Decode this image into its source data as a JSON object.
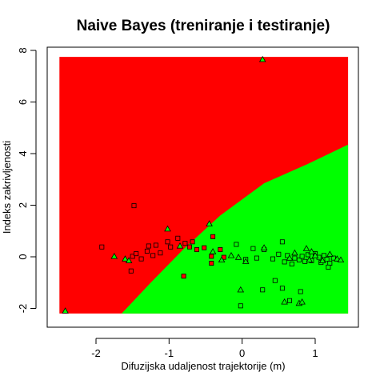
{
  "chart_data": {
    "type": "scatter",
    "title": "Naive Bayes (treniranje i testiranje)",
    "xlabel": "Difuzijska udaljenost trajektorije (m)",
    "ylabel": "Indeks zakrivljenosti",
    "xlim": [
      -2.5,
      1.45
    ],
    "ylim": [
      -2.2,
      7.75
    ],
    "x_ticks": [
      -2,
      -1,
      0,
      1
    ],
    "y_ticks": [
      -2,
      0,
      2,
      4,
      6,
      8
    ],
    "grid": false,
    "legend": "none",
    "regions": [
      {
        "class": "red",
        "color": "#ff0000",
        "boundary": [
          [
            -2.5,
            -2.2
          ],
          [
            1.45,
            -2.2
          ],
          [
            1.45,
            7.75
          ],
          [
            -2.5,
            7.75
          ]
        ]
      },
      {
        "class": "green",
        "color": "#00ff00",
        "boundary": [
          [
            -1.65,
            -2.2
          ],
          [
            1.45,
            -2.2
          ],
          [
            1.45,
            4.35
          ],
          [
            0.9,
            3.6
          ],
          [
            0.3,
            2.85
          ],
          [
            -0.3,
            1.6
          ],
          [
            -0.8,
            0.3
          ],
          [
            -1.25,
            -1.0
          ],
          [
            -1.65,
            -2.2
          ]
        ]
      }
    ],
    "series": [
      {
        "marker": "square",
        "points": [
          {
            "x": -1.92,
            "y": 0.38,
            "color": "#ff0000"
          },
          {
            "x": -1.48,
            "y": 1.98,
            "color": "#ff0000"
          },
          {
            "x": -1.5,
            "y": 0.02,
            "color": "#ff0000"
          },
          {
            "x": -1.52,
            "y": -0.55,
            "color": "#ff0000"
          },
          {
            "x": -1.45,
            "y": 0.12,
            "color": "#ff0000"
          },
          {
            "x": -1.38,
            "y": -0.08,
            "color": "#ff0000"
          },
          {
            "x": -1.3,
            "y": 0.22,
            "color": "#ff0000"
          },
          {
            "x": -1.28,
            "y": 0.42,
            "color": "#ff0000"
          },
          {
            "x": -1.22,
            "y": 0.05,
            "color": "#ff0000"
          },
          {
            "x": -1.18,
            "y": 0.45,
            "color": "#ff0000"
          },
          {
            "x": -1.12,
            "y": 0.15,
            "color": "#ff0000"
          },
          {
            "x": -1.02,
            "y": 0.58,
            "color": "#ff0000"
          },
          {
            "x": -0.98,
            "y": 0.38,
            "color": "#ff0000"
          },
          {
            "x": -0.88,
            "y": 0.72,
            "color": "#ff0000"
          },
          {
            "x": -0.78,
            "y": 0.52,
            "color": "#ff0000"
          },
          {
            "x": -0.72,
            "y": 0.38,
            "color": "#ff0000"
          },
          {
            "x": -0.68,
            "y": 0.58,
            "color": "#ff0000"
          },
          {
            "x": -0.62,
            "y": 0.28,
            "color": "#ff0000"
          },
          {
            "x": -0.52,
            "y": 0.35,
            "color": "#ff0000"
          },
          {
            "x": -0.42,
            "y": 0.02,
            "color": "#ff0000"
          },
          {
            "x": -0.4,
            "y": 0.78,
            "color": "#ff0000"
          },
          {
            "x": -0.3,
            "y": 0.28,
            "color": "#ff0000"
          },
          {
            "x": -0.42,
            "y": -0.25,
            "color": "#ff0000"
          },
          {
            "x": -0.25,
            "y": -0.02,
            "color": "#ff0000"
          },
          {
            "x": -0.8,
            "y": -0.75,
            "color": "#ff0000"
          },
          {
            "x": -0.08,
            "y": 0.48,
            "color": "#00ff00"
          },
          {
            "x": 0.05,
            "y": -0.1,
            "color": "#00ff00"
          },
          {
            "x": 0.15,
            "y": 0.32,
            "color": "#00ff00"
          },
          {
            "x": 0.2,
            "y": -0.05,
            "color": "#00ff00"
          },
          {
            "x": 0.3,
            "y": 0.28,
            "color": "#00ff00"
          },
          {
            "x": 0.42,
            "y": -0.08,
            "color": "#00ff00"
          },
          {
            "x": 0.5,
            "y": 0.1,
            "color": "#00ff00"
          },
          {
            "x": 0.55,
            "y": 0.58,
            "color": "#00ff00"
          },
          {
            "x": 0.58,
            "y": -0.2,
            "color": "#00ff00"
          },
          {
            "x": 0.62,
            "y": 0.05,
            "color": "#00ff00"
          },
          {
            "x": 0.45,
            "y": -0.92,
            "color": "#00ff00"
          },
          {
            "x": 0.55,
            "y": -1.22,
            "color": "#00ff00"
          },
          {
            "x": 0.68,
            "y": -0.28,
            "color": "#00ff00"
          },
          {
            "x": 0.72,
            "y": -0.05,
            "color": "#00ff00"
          },
          {
            "x": 0.78,
            "y": -0.12,
            "color": "#00ff00"
          },
          {
            "x": 0.82,
            "y": 0.02,
            "color": "#00ff00"
          },
          {
            "x": 0.86,
            "y": -0.18,
            "color": "#00ff00"
          },
          {
            "x": 0.9,
            "y": 0.08,
            "color": "#00ff00"
          },
          {
            "x": 0.95,
            "y": -0.15,
            "color": "#00ff00"
          },
          {
            "x": 1.0,
            "y": 0.12,
            "color": "#00ff00"
          },
          {
            "x": 1.05,
            "y": -0.02,
            "color": "#00ff00"
          },
          {
            "x": 1.08,
            "y": -0.22,
            "color": "#00ff00"
          },
          {
            "x": 1.12,
            "y": 0.05,
            "color": "#00ff00"
          },
          {
            "x": 1.16,
            "y": -0.1,
            "color": "#00ff00"
          },
          {
            "x": 1.2,
            "y": -0.25,
            "color": "#00ff00"
          },
          {
            "x": 1.25,
            "y": -0.05,
            "color": "#00ff00"
          },
          {
            "x": 0.65,
            "y": -1.7,
            "color": "#00ff00"
          },
          {
            "x": 0.8,
            "y": -1.35,
            "color": "#00ff00"
          },
          {
            "x": -0.02,
            "y": -1.9,
            "color": "#00ff00"
          },
          {
            "x": 0.28,
            "y": -1.28,
            "color": "#00ff00"
          },
          {
            "x": 1.18,
            "y": -0.4,
            "color": "#00ff00"
          }
        ]
      },
      {
        "marker": "triangle",
        "points": [
          {
            "x": -2.42,
            "y": -2.1,
            "color": "#00ff00"
          },
          {
            "x": -1.75,
            "y": 0.02,
            "color": "#00ff00"
          },
          {
            "x": -1.6,
            "y": -0.08,
            "color": "#00ff00"
          },
          {
            "x": -1.55,
            "y": -0.15,
            "color": "#00ff00"
          },
          {
            "x": -1.02,
            "y": 1.08,
            "color": "#00ff00"
          },
          {
            "x": -0.85,
            "y": 0.42,
            "color": "#00ff00"
          },
          {
            "x": -0.45,
            "y": 1.28,
            "color": "#00ff00"
          },
          {
            "x": -0.4,
            "y": 0.2,
            "color": "#00ff00"
          },
          {
            "x": -0.28,
            "y": -0.12,
            "color": "#00ff00"
          },
          {
            "x": -0.15,
            "y": 0.05,
            "color": "#00ff00"
          },
          {
            "x": 0.28,
            "y": 7.65,
            "color": "#00ff00"
          },
          {
            "x": -0.05,
            "y": -0.02,
            "color": "#00ff00"
          },
          {
            "x": -0.02,
            "y": -1.28,
            "color": "#00ff00"
          },
          {
            "x": 0.3,
            "y": 0.35,
            "color": "#00ff00"
          },
          {
            "x": 0.58,
            "y": -1.75,
            "color": "#00ff00"
          },
          {
            "x": 0.65,
            "y": -0.05,
            "color": "#00ff00"
          },
          {
            "x": 0.72,
            "y": 0.15,
            "color": "#00ff00"
          },
          {
            "x": 0.78,
            "y": -1.8,
            "color": "#00ff00"
          },
          {
            "x": 0.82,
            "y": -1.75,
            "color": "#00ff00"
          },
          {
            "x": 0.88,
            "y": 0.32,
            "color": "#00ff00"
          },
          {
            "x": 0.92,
            "y": -0.12,
            "color": "#00ff00"
          },
          {
            "x": 1.0,
            "y": 0.05,
            "color": "#00ff00"
          },
          {
            "x": 1.1,
            "y": -0.15,
            "color": "#00ff00"
          },
          {
            "x": 1.2,
            "y": 0.1,
            "color": "#00ff00"
          },
          {
            "x": 1.3,
            "y": -0.08,
            "color": "#00ff00"
          },
          {
            "x": 1.35,
            "y": -0.12,
            "color": "#00ff00"
          },
          {
            "x": 0.05,
            "y": -0.18,
            "color": "#00ff00"
          },
          {
            "x": 0.95,
            "y": 0.2,
            "color": "#00ff00"
          }
        ]
      }
    ]
  }
}
